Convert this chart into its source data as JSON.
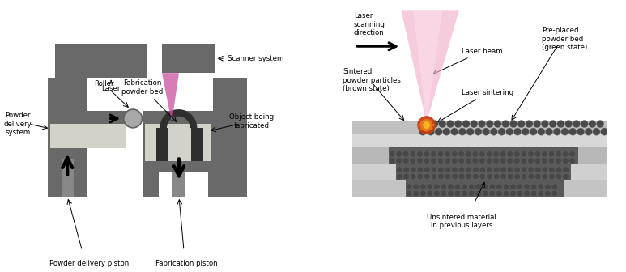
{
  "bg": "#ffffff",
  "dg": "#696969",
  "mg": "#888888",
  "lg": "#b4b4b4",
  "pw": "#d2d2c8",
  "dk": "#2e2e2e",
  "lp": "#d060a0",
  "lp2": "#f0c0d8",
  "orange1": "#d05010",
  "orange2": "#f09020",
  "yellow1": "#f8c800",
  "pc": "#4a4a4a",
  "labels": {
    "scanner": "Scanner system",
    "laser": "Laser",
    "roller": "Roller",
    "powder_sys": "Powder\ndelivery\nsystem",
    "fab_bed": "Fabrication\npowder bed",
    "obj_fab": "Object being\nfabricated",
    "pdp": "Powder delivery piston",
    "fp": "Fabrication piston",
    "lsd": "Laser\nscanning\ndirection",
    "lb": "Laser beam",
    "ppb": "Pre-placed\npowder bed\n(green state)",
    "spp": "Sintered\npowder particles\n(brown state)",
    "ls": "Laser sintering",
    "usm": "Unsintered material\nin previous layers"
  }
}
